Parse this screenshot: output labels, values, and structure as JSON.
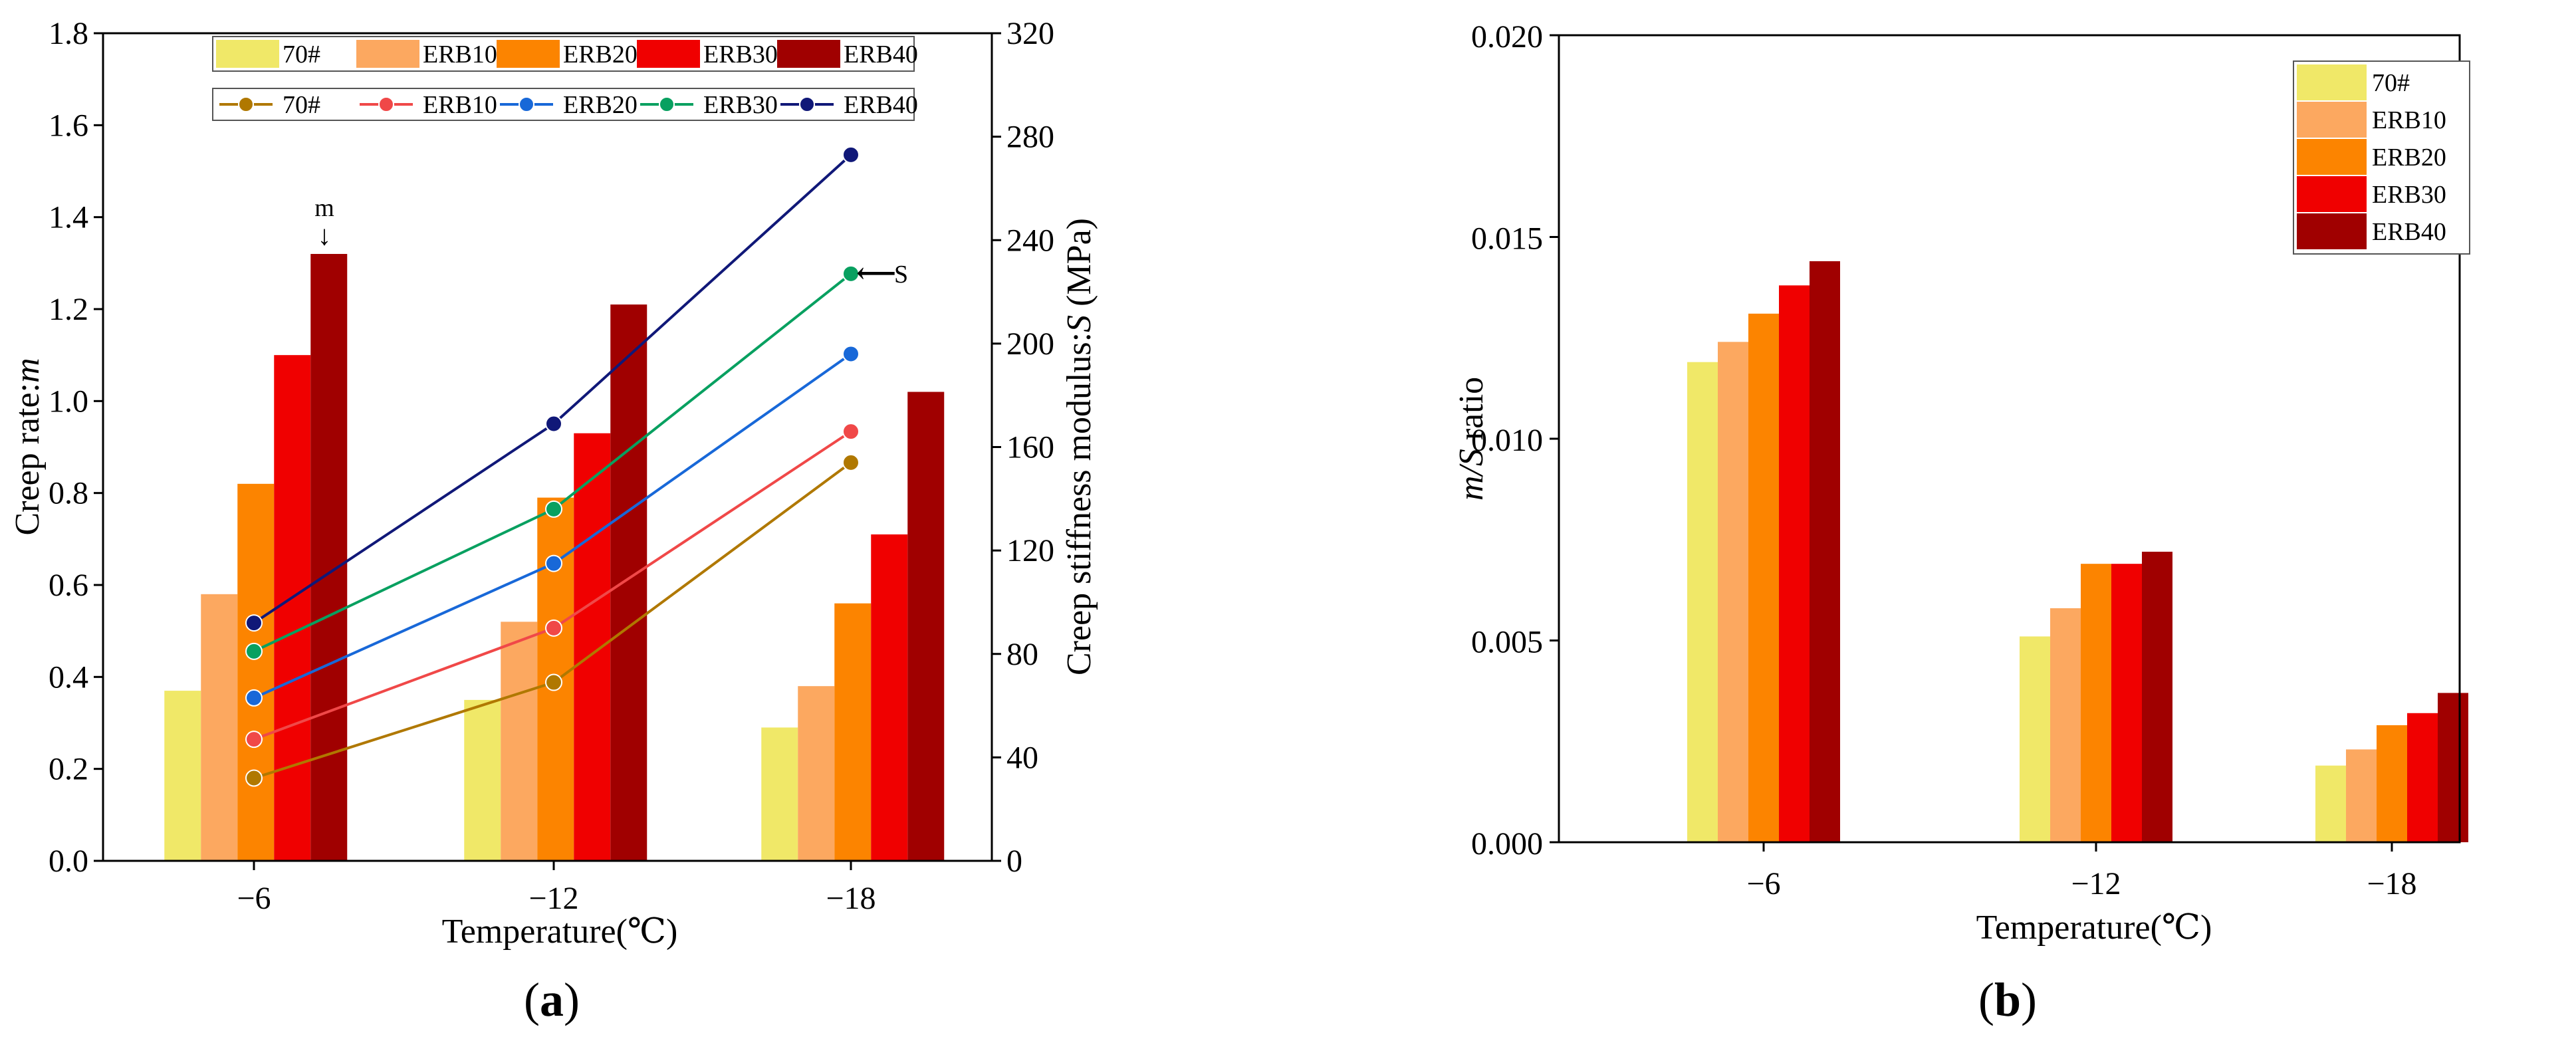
{
  "chart_data": [
    {
      "id": "a",
      "type": "bar+line",
      "panel_label_open": "(",
      "panel_label": "a",
      "panel_label_close": ")",
      "categories": [
        "−6",
        "−12",
        "−18"
      ],
      "xlabel": "Temperature(℃)",
      "ylabel_left_prefix": "Creep rate:",
      "ylabel_left_var": "m",
      "ylabel_right_prefix": "Creep stiffness modulus:",
      "ylabel_right_var": "S",
      "ylabel_right_suffix": " (MPa)",
      "ylim_left": [
        0,
        1.8
      ],
      "ylim_right": [
        0,
        320
      ],
      "yticks_left": [
        "0.0",
        "0.2",
        "0.4",
        "0.6",
        "0.8",
        "1.0",
        "1.2",
        "1.4",
        "1.6",
        "1.8"
      ],
      "yticks_right": [
        "0",
        "40",
        "80",
        "120",
        "160",
        "200",
        "240",
        "280",
        "320"
      ],
      "bar_series": [
        {
          "name": "70#",
          "color": "#f0e868",
          "values": [
            0.37,
            0.35,
            0.29
          ]
        },
        {
          "name": "ERB10",
          "color": "#fca860",
          "values": [
            0.58,
            0.52,
            0.38
          ]
        },
        {
          "name": "ERB20",
          "color": "#fc8400",
          "values": [
            0.82,
            0.79,
            0.56
          ]
        },
        {
          "name": "ERB30",
          "color": "#f00000",
          "values": [
            1.1,
            0.93,
            0.71
          ]
        },
        {
          "name": "ERB40",
          "color": "#a00000",
          "values": [
            1.32,
            1.21,
            1.02
          ]
        }
      ],
      "line_series": [
        {
          "name": "70#",
          "color": "#b07800",
          "values": [
            32,
            69,
            154
          ]
        },
        {
          "name": "ERB10",
          "color": "#f04848",
          "values": [
            47,
            90,
            166
          ]
        },
        {
          "name": "ERB20",
          "color": "#1868d8",
          "values": [
            63,
            115,
            196
          ]
        },
        {
          "name": "ERB30",
          "color": "#08a060",
          "values": [
            81,
            136,
            227
          ]
        },
        {
          "name": "ERB40",
          "color": "#101878",
          "values": [
            92,
            169,
            273
          ]
        }
      ],
      "annotations": [
        {
          "text": "m",
          "arrow": "↓",
          "target": "ERB40 bar at −6"
        },
        {
          "text": "S",
          "arrow": "⟵",
          "target": "lines at −18"
        }
      ]
    },
    {
      "id": "b",
      "type": "bar",
      "panel_label_open": "(",
      "panel_label": "b",
      "panel_label_close": ")",
      "categories": [
        "−6",
        "−12",
        "−18"
      ],
      "xlabel": "Temperature(℃)",
      "ylabel_var": "m/S",
      "ylabel_suffix": " ratio",
      "ylim": [
        0,
        0.02
      ],
      "yticks": [
        "0.000",
        "0.005",
        "0.010",
        "0.015",
        "0.020"
      ],
      "legend_position": "top-right",
      "series": [
        {
          "name": "70#",
          "color": "#f0e868",
          "values": [
            0.0119,
            0.0051,
            0.0019
          ]
        },
        {
          "name": "ERB10",
          "color": "#fca860",
          "values": [
            0.0124,
            0.0058,
            0.0023
          ]
        },
        {
          "name": "ERB20",
          "color": "#fc8400",
          "values": [
            0.0131,
            0.0069,
            0.0029
          ]
        },
        {
          "name": "ERB30",
          "color": "#f00000",
          "values": [
            0.0138,
            0.0069,
            0.0032
          ]
        },
        {
          "name": "ERB40",
          "color": "#a00000",
          "values": [
            0.0144,
            0.0072,
            0.0037
          ]
        }
      ]
    }
  ]
}
